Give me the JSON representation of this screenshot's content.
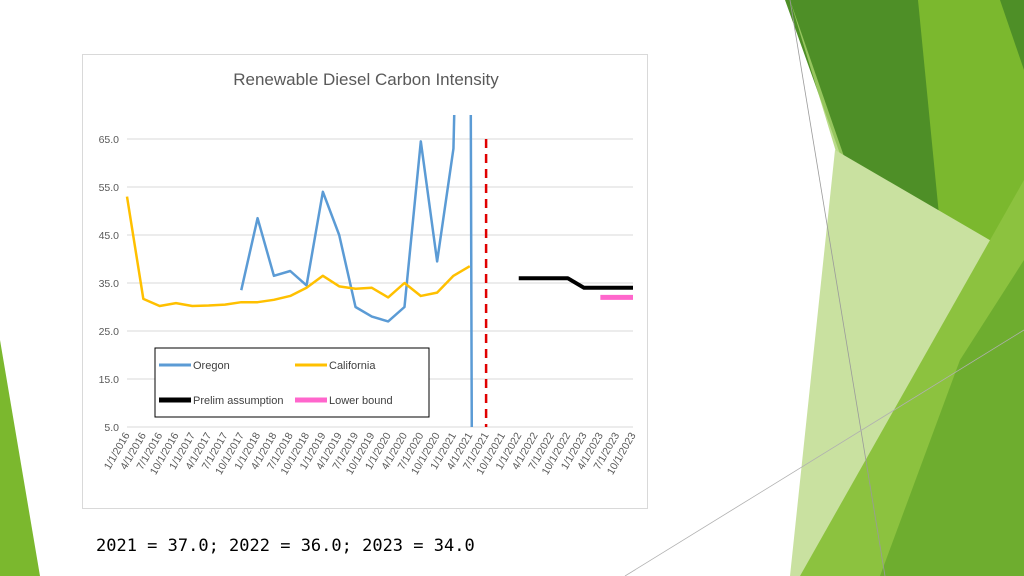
{
  "caption": "2021 = 37.0; 2022 = 36.0; 2023 = 34.0",
  "colors": {
    "oregon": "#5b9bd5",
    "california": "#ffc000",
    "prelim": "#000000",
    "lower": "#ff66cc",
    "marker": "#e00000",
    "gridline": "#d9d9d9",
    "green_dark": "#4e8f27",
    "green_mid": "#7bb82e",
    "green_light": "#c9e1a0"
  },
  "chart_data": {
    "type": "line",
    "title": "Renewable Diesel Carbon Intensity",
    "categories": [
      "1/1/2016",
      "4/1/2016",
      "7/1/2016",
      "10/1/2016",
      "1/1/2017",
      "4/1/2017",
      "7/1/2017",
      "10/1/2017",
      "1/1/2018",
      "4/1/2018",
      "7/1/2018",
      "10/1/2018",
      "1/1/2019",
      "4/1/2019",
      "7/1/2019",
      "10/1/2019",
      "1/1/2020",
      "4/1/2020",
      "7/1/2020",
      "10/1/2020",
      "1/1/2021",
      "4/1/2021",
      "7/1/2021",
      "10/1/2021",
      "1/1/2022",
      "4/1/2022",
      "7/1/2022",
      "10/1/2022",
      "1/1/2023",
      "4/1/2023",
      "7/1/2023",
      "10/1/2023"
    ],
    "ylim": [
      5.0,
      70.0
    ],
    "yticks": [
      "65.0",
      "55.0",
      "45.0",
      "35.0",
      "25.0",
      "15.0",
      "5.0"
    ],
    "grid": true,
    "legend_position": "lower-left inside plot",
    "marker_line_category": "7/1/2021",
    "series": [
      {
        "name": "Oregon",
        "values": [
          null,
          null,
          null,
          null,
          null,
          null,
          null,
          33.5,
          48.5,
          36.5,
          37.5,
          34.5,
          54.0,
          45.0,
          30.0,
          28.0,
          27.0,
          30.0,
          64.5,
          39.5,
          63.0,
          null,
          null,
          null,
          null,
          null,
          null,
          null,
          null,
          null,
          null,
          null
        ]
      },
      {
        "name": "California",
        "values": [
          53.0,
          31.7,
          30.2,
          30.8,
          30.2,
          30.3,
          30.5,
          31.0,
          31.0,
          31.5,
          32.3,
          34.0,
          36.5,
          34.3,
          33.8,
          34.0,
          32.0,
          35.0,
          32.3,
          33.0,
          36.5,
          38.5,
          null,
          null,
          null,
          null,
          null,
          null,
          null,
          null,
          null,
          null
        ]
      },
      {
        "name": "Prelim assumption",
        "values": [
          null,
          null,
          null,
          null,
          null,
          null,
          null,
          null,
          null,
          null,
          null,
          null,
          null,
          null,
          null,
          null,
          null,
          null,
          null,
          null,
          null,
          null,
          null,
          null,
          36.0,
          36.0,
          36.0,
          36.0,
          34.0,
          34.0,
          34.0,
          34.0
        ]
      },
      {
        "name": "Lower bound",
        "values": [
          null,
          null,
          null,
          null,
          null,
          null,
          null,
          null,
          null,
          null,
          null,
          null,
          null,
          null,
          null,
          null,
          null,
          null,
          null,
          null,
          null,
          null,
          null,
          null,
          null,
          null,
          null,
          null,
          null,
          32.0,
          32.0,
          32.0
        ]
      }
    ]
  }
}
